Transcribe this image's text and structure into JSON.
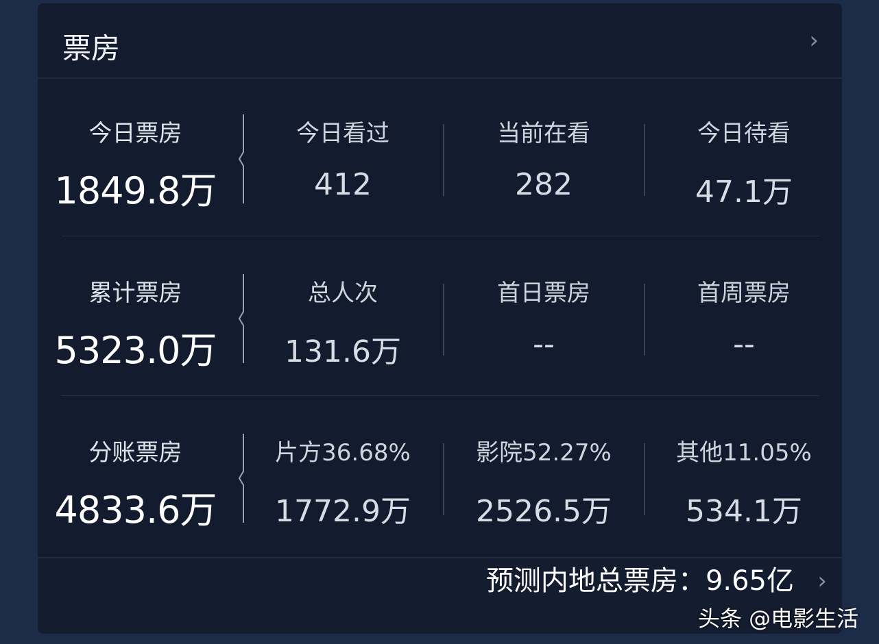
{
  "header": {
    "title": "票房",
    "chevron_icon": "chevron-right-icon"
  },
  "rows": [
    {
      "main": {
        "label": "今日票房",
        "value": "1849.8万"
      },
      "cols": [
        {
          "label": "今日看过",
          "value": "412"
        },
        {
          "label": "当前在看",
          "value": "282"
        },
        {
          "label": "今日待看",
          "value": "47.1万"
        }
      ]
    },
    {
      "main": {
        "label": "累计票房",
        "value": "5323.0万"
      },
      "cols": [
        {
          "label": "总人次",
          "value": "131.6万"
        },
        {
          "label": "首日票房",
          "value": "--"
        },
        {
          "label": "首周票房",
          "value": "--"
        }
      ]
    },
    {
      "main": {
        "label": "分账票房",
        "value": "4833.6万"
      },
      "cols": [
        {
          "label": "片方36.68%",
          "value": "1772.9万"
        },
        {
          "label": "影院52.27%",
          "value": "2526.5万"
        },
        {
          "label": "其他11.05%",
          "value": "534.1万"
        }
      ]
    }
  ],
  "footer": {
    "label": "预测内地总票房：",
    "value": "9.65亿"
  },
  "watermark": "头条 @电影生活"
}
